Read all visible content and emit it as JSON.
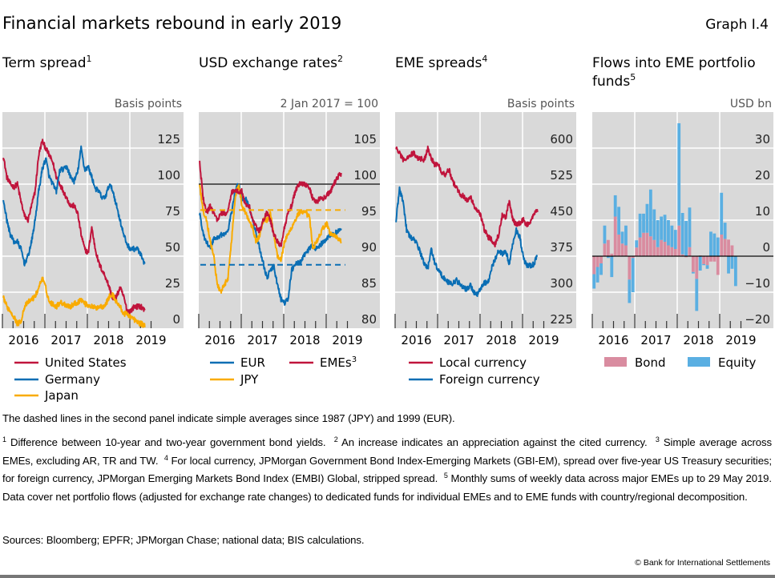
{
  "header": {
    "title": "Financial markets rebound in early 2019",
    "graph_number": "Graph I.4"
  },
  "colors": {
    "red": "#c0143c",
    "blue": "#0a6eb4",
    "yellow": "#f9ab00",
    "pink": "#d98ca0",
    "light_blue": "#5aafe2",
    "plot_background": "#d9d9d9",
    "gridline": "#ffffff"
  },
  "chart_data": [
    {
      "type": "line",
      "title": "Term spread",
      "title_sup": "1",
      "unit": "Basis points",
      "ylim": [
        0,
        150
      ],
      "yticks": [
        0,
        25,
        50,
        75,
        100,
        125
      ],
      "xticks": [
        "2016",
        "2017",
        "2018",
        "2019"
      ],
      "grid": true,
      "legend_placement": "bottom",
      "x": [
        "2016-01",
        "2016-02",
        "2016-03",
        "2016-04",
        "2016-05",
        "2016-06",
        "2016-07",
        "2016-08",
        "2016-09",
        "2016-10",
        "2016-11",
        "2016-12",
        "2017-01",
        "2017-02",
        "2017-03",
        "2017-04",
        "2017-05",
        "2017-06",
        "2017-07",
        "2017-08",
        "2017-09",
        "2017-10",
        "2017-11",
        "2017-12",
        "2018-01",
        "2018-02",
        "2018-03",
        "2018-04",
        "2018-05",
        "2018-06",
        "2018-07",
        "2018-08",
        "2018-09",
        "2018-10",
        "2018-11",
        "2018-12",
        "2019-01",
        "2019-02",
        "2019-03",
        "2019-04",
        "2019-05"
      ],
      "series": [
        {
          "name": "United States",
          "color": "#c0143c",
          "values": [
            120,
            105,
            100,
            98,
            100,
            88,
            78,
            75,
            85,
            95,
            120,
            130,
            125,
            120,
            115,
            105,
            100,
            95,
            90,
            85,
            85,
            80,
            65,
            55,
            52,
            70,
            55,
            45,
            40,
            35,
            28,
            20,
            22,
            28,
            22,
            12,
            12,
            15,
            15,
            15,
            12
          ]
        },
        {
          "name": "Germany",
          "color": "#0a6eb4",
          "values": [
            90,
            75,
            65,
            60,
            60,
            55,
            45,
            50,
            60,
            75,
            95,
            110,
            118,
            105,
            100,
            95,
            110,
            110,
            112,
            105,
            102,
            108,
            125,
            110,
            112,
            105,
            97,
            95,
            90,
            92,
            100,
            95,
            85,
            75,
            65,
            58,
            55,
            55,
            55,
            50,
            43
          ]
        },
        {
          "name": "Japan",
          "color": "#f9ab00",
          "values": [
            22,
            15,
            12,
            8,
            3,
            5,
            15,
            18,
            20,
            22,
            28,
            35,
            28,
            18,
            17,
            15,
            18,
            17,
            16,
            15,
            17,
            18,
            20,
            17,
            16,
            15,
            14,
            15,
            15,
            17,
            22,
            23,
            18,
            15,
            10,
            10,
            8,
            6,
            4,
            3,
            2
          ]
        }
      ]
    },
    {
      "type": "line",
      "title": "USD exchange rates",
      "title_sup": "2",
      "unit": "2 Jan 2017 = 100",
      "ylim": [
        80,
        110
      ],
      "yticks": [
        80,
        85,
        90,
        95,
        100,
        105
      ],
      "xticks": [
        "2016",
        "2017",
        "2018",
        "2019"
      ],
      "grid": true,
      "legend_placement": "bottom",
      "x": [
        "2016-01",
        "2016-02",
        "2016-03",
        "2016-04",
        "2016-05",
        "2016-06",
        "2016-07",
        "2016-08",
        "2016-09",
        "2016-10",
        "2016-11",
        "2016-12",
        "2017-01",
        "2017-02",
        "2017-03",
        "2017-04",
        "2017-05",
        "2017-06",
        "2017-07",
        "2017-08",
        "2017-09",
        "2017-10",
        "2017-11",
        "2017-12",
        "2018-01",
        "2018-02",
        "2018-03",
        "2018-04",
        "2018-05",
        "2018-06",
        "2018-07",
        "2018-08",
        "2018-09",
        "2018-10",
        "2018-11",
        "2018-12",
        "2019-01",
        "2019-02",
        "2019-03",
        "2019-04",
        "2019-05"
      ],
      "series": [
        {
          "name": "EUR",
          "color": "#0a6eb4",
          "values": [
            96,
            93,
            92,
            91,
            92.5,
            92.5,
            93,
            93,
            93.5,
            96,
            99,
            100,
            98,
            98,
            97,
            95,
            93,
            91,
            89,
            87,
            88,
            88.5,
            86,
            84,
            83.5,
            84,
            88,
            89,
            89,
            89.5,
            90.5,
            91,
            91.5,
            91,
            91.5,
            92,
            92.5,
            93,
            93,
            93.5,
            93.5
          ]
        },
        {
          "name": "JPY",
          "color": "#f9ab00",
          "values": [
            100,
            96,
            95,
            92,
            90,
            86,
            85,
            86,
            87,
            92,
            98,
            100,
            97,
            96,
            95,
            94,
            92,
            93,
            95,
            95,
            96,
            93,
            90,
            89.5,
            92,
            93,
            94,
            95,
            96,
            96,
            96,
            95.5,
            91,
            92,
            93,
            94,
            94.5,
            93,
            93,
            92.5,
            92
          ]
        },
        {
          "name": "EMEs",
          "name_sup": "3",
          "color": "#c0143c",
          "values": [
            103,
            98,
            96,
            97,
            96,
            95,
            96,
            96,
            96,
            99,
            99,
            99,
            99,
            97,
            97,
            95,
            94,
            93.5,
            95,
            96,
            95,
            93,
            92,
            91.5,
            94,
            96,
            97,
            99,
            100,
            100,
            100,
            99.5,
            98,
            97.5,
            98,
            98,
            98.5,
            99,
            100,
            101,
            101.5
          ]
        }
      ],
      "reference_lines": [
        {
          "value": 100,
          "style": "solid",
          "color": "#000000"
        },
        {
          "value": 96.4,
          "style": "dashed",
          "series": "JPY",
          "color": "#f9ab00"
        },
        {
          "value": 88.8,
          "style": "dashed",
          "series": "EUR",
          "color": "#0a6eb4"
        }
      ]
    },
    {
      "type": "line",
      "title": "EME spreads",
      "title_sup": "4",
      "unit": "Basis points",
      "ylim": [
        225,
        675
      ],
      "yticks": [
        225,
        300,
        375,
        450,
        525,
        600
      ],
      "xticks": [
        "2016",
        "2017",
        "2018",
        "2019"
      ],
      "grid": true,
      "legend_placement": "bottom",
      "x": [
        "2016-01",
        "2016-02",
        "2016-03",
        "2016-04",
        "2016-05",
        "2016-06",
        "2016-07",
        "2016-08",
        "2016-09",
        "2016-10",
        "2016-11",
        "2016-12",
        "2017-01",
        "2017-02",
        "2017-03",
        "2017-04",
        "2017-05",
        "2017-06",
        "2017-07",
        "2017-08",
        "2017-09",
        "2017-10",
        "2017-11",
        "2017-12",
        "2018-01",
        "2018-02",
        "2018-03",
        "2018-04",
        "2018-05",
        "2018-06",
        "2018-07",
        "2018-08",
        "2018-09",
        "2018-10",
        "2018-11",
        "2018-12",
        "2019-01",
        "2019-02",
        "2019-03",
        "2019-04",
        "2019-05"
      ],
      "series": [
        {
          "name": "Local currency",
          "color": "#c0143c",
          "values": [
            600,
            590,
            575,
            580,
            585,
            590,
            580,
            578,
            575,
            600,
            580,
            565,
            565,
            550,
            545,
            555,
            530,
            520,
            505,
            500,
            490,
            500,
            480,
            470,
            460,
            430,
            415,
            410,
            400,
            420,
            460,
            455,
            490,
            450,
            440,
            445,
            450,
            440,
            445,
            465,
            470
          ]
        },
        {
          "name": "Foreign currency",
          "color": "#0a6eb4",
          "values": [
            450,
            515,
            490,
            430,
            415,
            410,
            400,
            380,
            360,
            350,
            390,
            360,
            345,
            335,
            325,
            320,
            318,
            325,
            318,
            310,
            305,
            315,
            300,
            295,
            310,
            320,
            320,
            350,
            370,
            385,
            380,
            385,
            360,
            400,
            430,
            415,
            370,
            355,
            355,
            358,
            380
          ]
        }
      ]
    },
    {
      "type": "bar",
      "stacked": true,
      "title": "Flows into EME portfolio funds",
      "title_sup": "5",
      "unit": "USD bn",
      "ylim": [
        -20,
        40
      ],
      "yticks": [
        -20,
        -10,
        0,
        10,
        20,
        30
      ],
      "xticks": [
        "2016",
        "2017",
        "2018",
        "2019"
      ],
      "grid": true,
      "legend_placement": "bottom",
      "x": [
        "2016-01",
        "2016-02",
        "2016-03",
        "2016-04",
        "2016-05",
        "2016-06",
        "2016-07",
        "2016-08",
        "2016-09",
        "2016-10",
        "2016-11",
        "2016-12",
        "2017-01",
        "2017-02",
        "2017-03",
        "2017-04",
        "2017-05",
        "2017-06",
        "2017-07",
        "2017-08",
        "2017-09",
        "2017-10",
        "2017-11",
        "2017-12",
        "2018-01",
        "2018-02",
        "2018-03",
        "2018-04",
        "2018-05",
        "2018-06",
        "2018-07",
        "2018-08",
        "2018-09",
        "2018-10",
        "2018-11",
        "2018-12",
        "2019-01",
        "2019-02",
        "2019-03",
        "2019-04",
        "2019-05"
      ],
      "series": [
        {
          "name": "Bond",
          "color": "#d98ca0",
          "values": [
            -5,
            -3,
            -2,
            3.5,
            4.5,
            0.7,
            11,
            6,
            3.5,
            3,
            -6.5,
            -0.5,
            2.4,
            5.2,
            6.5,
            6.5,
            5.5,
            4.5,
            2.5,
            4.5,
            4,
            3,
            2.5,
            2,
            8.5,
            0.5,
            -0.3,
            2.5,
            -4.4,
            -6.3,
            0.2,
            -2.2,
            -2.5,
            -1.5,
            -1.5,
            -5.2,
            6,
            4.8,
            4.6,
            3,
            0
          ]
        },
        {
          "name": "Equity",
          "color": "#5aafe2",
          "values": [
            -4,
            -4.3,
            -3.2,
            5,
            -0.5,
            -5.8,
            5.9,
            7.7,
            3.3,
            5.5,
            -6.5,
            -9.5,
            2,
            6.6,
            5.3,
            8,
            13,
            8.5,
            7.5,
            6.5,
            7.5,
            7,
            6,
            5.3,
            28.4,
            11.5,
            9.8,
            11,
            -0.4,
            -8.9,
            -4,
            -0.3,
            -1,
            6.8,
            6.3,
            5.2,
            11.6,
            4.5,
            -4.8,
            -3.5,
            -8.3
          ]
        }
      ],
      "reference_lines": [
        {
          "value": 0,
          "style": "solid",
          "color": "#000000"
        }
      ]
    }
  ],
  "notes": {
    "general": "The dashed lines in the second panel indicate simple averages since 1987 (JPY) and 1999 (EUR).",
    "footnotes": [
      {
        "n": "1",
        "text": "Difference between 10-year and two-year government bond yields."
      },
      {
        "n": "2",
        "text": "An increase indicates an appreciation against the cited currency."
      },
      {
        "n": "3",
        "text": "Simple average across EMEs, excluding AR, TR and TW."
      },
      {
        "n": "4",
        "text": "For local currency, JPMorgan Government Bond Index-Emerging Markets (GBI-EM), spread over five-year US Treasury securities; for foreign currency, JPMorgan Emerging Markets Bond Index (EMBI) Global, stripped spread."
      },
      {
        "n": "5",
        "text": "Monthly sums of weekly data across major EMEs up to 29 May 2019. Data cover net portfolio flows (adjusted for exchange rate changes) to dedicated funds for individual EMEs and to EME funds with country/regional decomposition."
      }
    ],
    "sources": "Sources: Bloomberg; EPFR; JPMorgan Chase; national data; BIS calculations.",
    "copyright": "© Bank for International Settlements"
  }
}
